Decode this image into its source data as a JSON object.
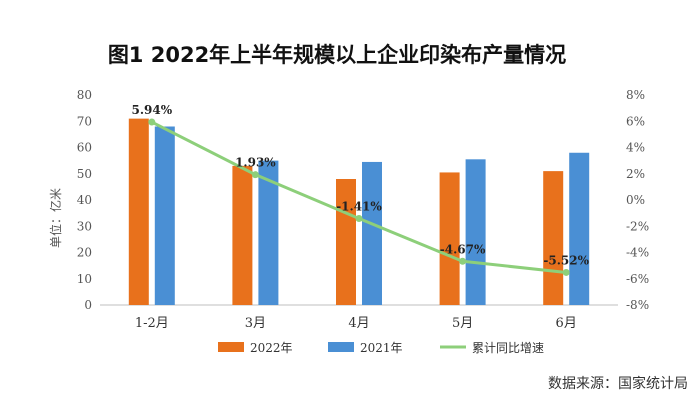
{
  "chart_data": {
    "type": "bar",
    "title": "图1  2022年上半年规模以上企业印染布产量情况",
    "ylabel": "单位：亿米",
    "source": "数据来源：国家统计局",
    "categories": [
      "1-2月",
      "3月",
      "4月",
      "5月",
      "6月"
    ],
    "ylim": [
      0,
      80
    ],
    "y_ticks": [
      "0",
      "10",
      "20",
      "30",
      "40",
      "50",
      "60",
      "70",
      "80"
    ],
    "y2lim": [
      -8,
      8
    ],
    "y2_ticks": [
      "-8%",
      "-6%",
      "-4%",
      "-2%",
      "0%",
      "2%",
      "4%",
      "6%",
      "8%"
    ],
    "series": [
      {
        "name": "2022年",
        "type": "bar",
        "axis": "left",
        "color": "#e8711c",
        "values": [
          71,
          53,
          48,
          50.5,
          51
        ]
      },
      {
        "name": "2021年",
        "type": "bar",
        "axis": "left",
        "color": "#4a8fd4",
        "values": [
          68,
          55,
          54.5,
          55.5,
          58
        ]
      },
      {
        "name": "累计同比增速",
        "type": "line",
        "axis": "right",
        "color": "#8dcf7a",
        "values": [
          5.94,
          1.93,
          -1.41,
          -4.67,
          -5.52
        ],
        "labels": [
          "5.94%",
          "1.93%",
          "-1.41%",
          "-4.67%",
          "-5.52%"
        ]
      }
    ],
    "grid": false,
    "legend": "bottom"
  }
}
